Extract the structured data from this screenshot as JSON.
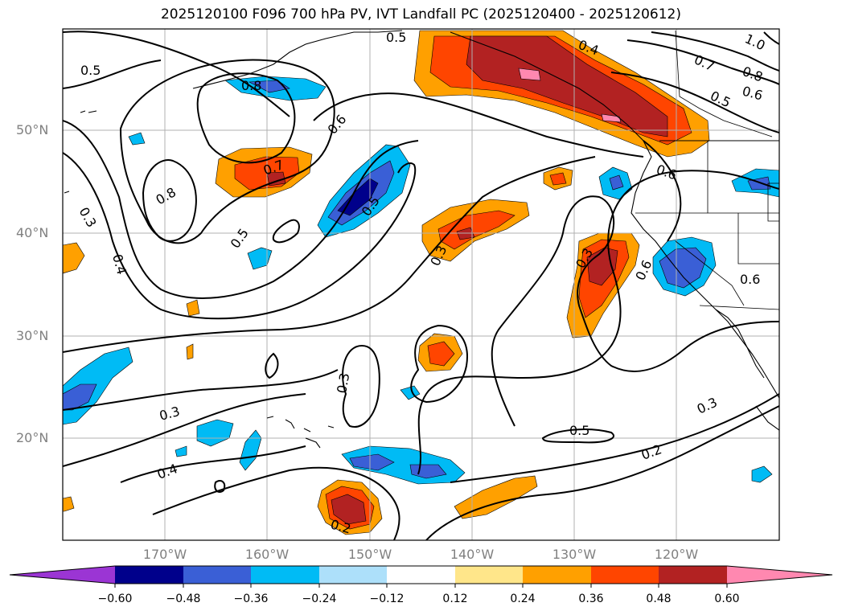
{
  "title": "2025120100 F096 700 hPa PV, IVT Landfall PC (2025120400 - 2025120612)",
  "latitude_labels": [
    "50°N",
    "40°N",
    "30°N",
    "20°N"
  ],
  "longitude_labels": [
    "170°W",
    "160°W",
    "150°W",
    "140°W",
    "130°W",
    "120°W"
  ],
  "colorbar": {
    "tick_labels": [
      "−0.60",
      "−0.48",
      "−0.36",
      "−0.24",
      "−0.12",
      "0.12",
      "0.24",
      "0.36",
      "0.48",
      "0.60"
    ],
    "colors": [
      "#9b35d4",
      "#00008b",
      "#3a5fd6",
      "#00bbf5",
      "#ade0fa",
      "#ffffff",
      "#ffe68a",
      "#ffa000",
      "#ff4500",
      "#b22222",
      "#ff88b0"
    ]
  },
  "contour_labels": [
    "0.5",
    "0.4",
    "1.0",
    "0.7",
    "0.8",
    "0.6",
    "0.5",
    "0.5",
    "0.8",
    "0.6",
    "0.7",
    "0.8",
    "0.6",
    "0.3",
    "0.4",
    "0.5",
    "0.5",
    "0.3",
    "0.3",
    "0.6",
    "0.6",
    "0.3",
    "0.5",
    "0.3",
    "0.2",
    "0.3",
    "0.4",
    "0.2"
  ],
  "colors": {
    "land_outline": "#000000",
    "grid": "#b0b0b0",
    "contour": "#000000"
  }
}
